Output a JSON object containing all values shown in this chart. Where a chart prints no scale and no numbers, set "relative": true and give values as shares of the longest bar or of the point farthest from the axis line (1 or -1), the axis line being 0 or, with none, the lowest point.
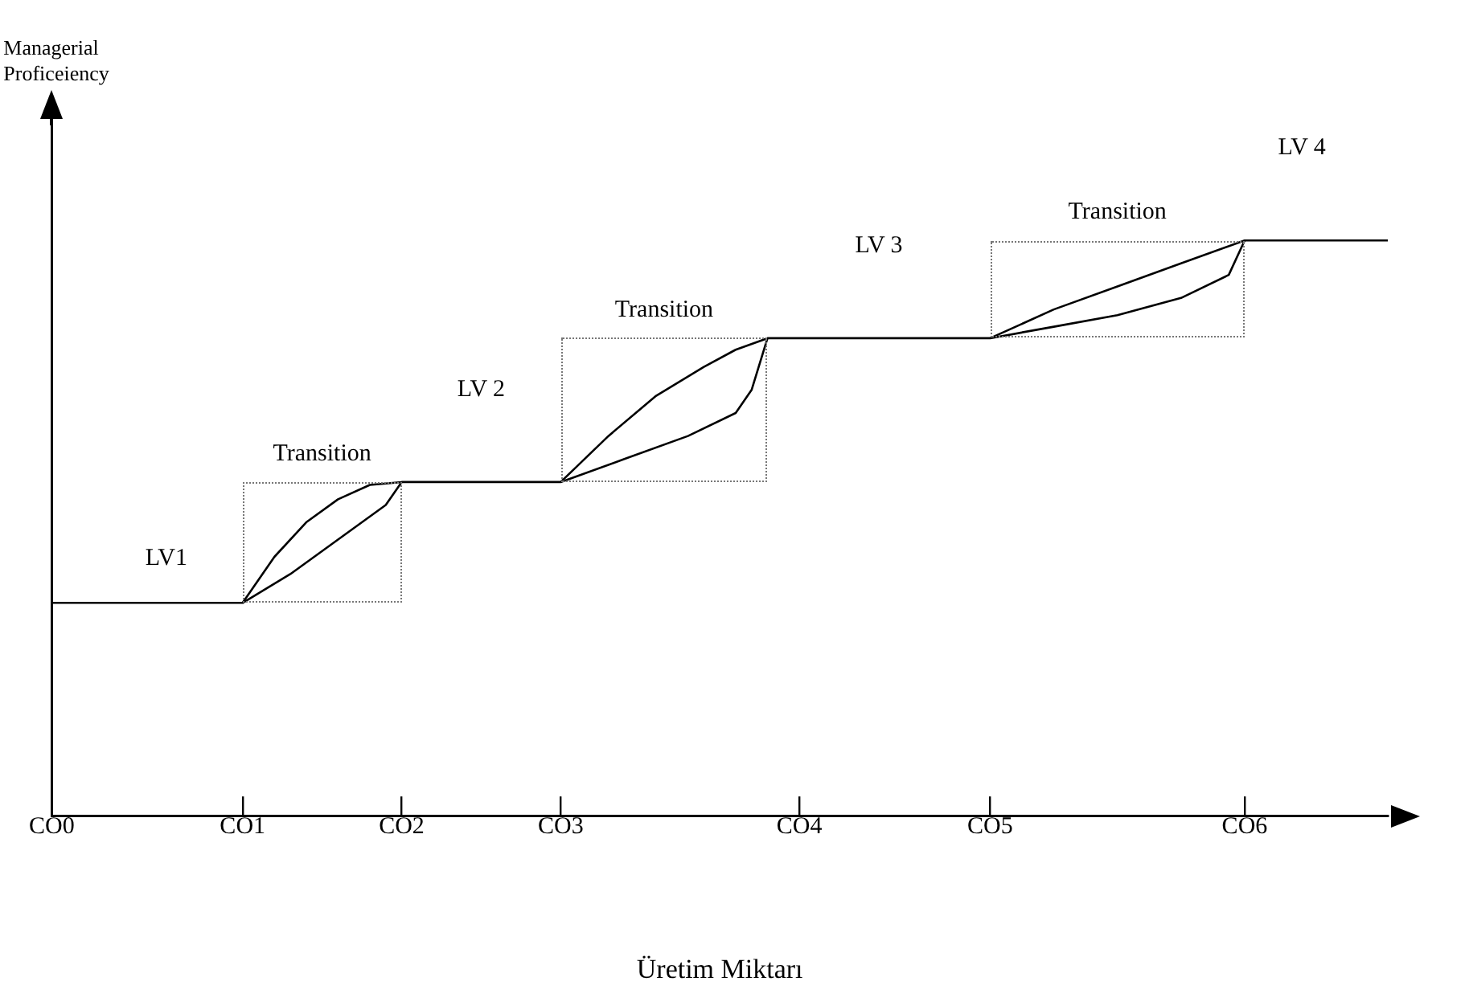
{
  "chart_data": {
    "type": "line",
    "relative": true,
    "xlabel": "Üretim Miktarı",
    "categories": [
      "CO0",
      null,
      null,
      null,
      null,
      null,
      null,
      null,
      null,
      null,
      null,
      null,
      "CO1",
      null,
      null,
      null,
      null,
      null,
      null,
      null,
      null,
      null,
      "CO2",
      null,
      null,
      null,
      null,
      null,
      null,
      null,
      null,
      null,
      "CO3",
      null,
      null,
      null,
      null,
      null,
      null,
      null,
      null,
      null,
      null,
      null,
      null,
      null,
      null,
      "CO4",
      null,
      null,
      null,
      null,
      null,
      null,
      null,
      null,
      null,
      null,
      null,
      "CO5",
      null,
      null,
      null,
      null,
      null,
      null,
      null,
      null,
      null,
      null,
      null,
      null,
      null,
      null,
      null,
      "CO6",
      null,
      null,
      null,
      null,
      null,
      null,
      null,
      null,
      null
    ],
    "series": [
      {
        "color": "#000000",
        "values": [
          0.37,
          null,
          null,
          null,
          null,
          null,
          null,
          null,
          null,
          null,
          null,
          null,
          0.37,
          null,
          0.45,
          null,
          0.51,
          null,
          0.55,
          null,
          0.575,
          null,
          0.58,
          null,
          null,
          null,
          null,
          null,
          null,
          null,
          null,
          null,
          0.58,
          null,
          null,
          0.66,
          null,
          null,
          0.73,
          null,
          null,
          0.78,
          null,
          0.81,
          null,
          0.83,
          null,
          null,
          null,
          null,
          null,
          null,
          null,
          null,
          null,
          null,
          null,
          null,
          null,
          0.83,
          null,
          null,
          null,
          0.88,
          null,
          null,
          null,
          0.92,
          null,
          null,
          null,
          0.96,
          null,
          null,
          null,
          1.0,
          null,
          null,
          null,
          null,
          null,
          null,
          null,
          null,
          1.0
        ]
      },
      {
        "color": "#000000",
        "values": [
          null,
          null,
          null,
          null,
          null,
          null,
          null,
          null,
          null,
          null,
          null,
          null,
          0.37,
          null,
          null,
          0.42,
          null,
          null,
          0.48,
          null,
          null,
          0.54,
          0.58,
          null,
          null,
          null,
          null,
          null,
          null,
          null,
          null,
          null,
          null,
          null,
          null,
          null,
          null,
          null,
          null,
          null,
          null,
          null,
          null,
          null,
          null,
          null,
          null,
          null,
          null,
          null,
          null,
          null,
          null,
          null,
          null,
          null,
          null,
          null,
          null,
          null,
          null,
          null,
          null,
          null,
          null,
          null,
          null,
          null,
          null,
          null,
          null,
          null,
          null,
          null,
          null,
          null,
          null,
          null,
          null,
          null,
          null,
          null,
          null,
          null,
          null
        ]
      },
      {
        "color": "#000000",
        "values": [
          null,
          null,
          null,
          null,
          null,
          null,
          null,
          null,
          null,
          null,
          null,
          null,
          null,
          null,
          null,
          null,
          null,
          null,
          null,
          null,
          null,
          null,
          null,
          null,
          null,
          null,
          null,
          null,
          null,
          null,
          null,
          null,
          0.58,
          null,
          null,
          null,
          0.62,
          null,
          null,
          null,
          0.66,
          null,
          null,
          0.7,
          0.74,
          0.83,
          null,
          null,
          null,
          null,
          null,
          null,
          null,
          null,
          null,
          null,
          null,
          null,
          null,
          null,
          null,
          null,
          null,
          null,
          null,
          null,
          null,
          null,
          null,
          null,
          null,
          null,
          null,
          null,
          null,
          null,
          null,
          null,
          null,
          null,
          null,
          null,
          null,
          null,
          null
        ]
      },
      {
        "color": "#000000",
        "values": [
          null,
          null,
          null,
          null,
          null,
          null,
          null,
          null,
          null,
          null,
          null,
          null,
          null,
          null,
          null,
          null,
          null,
          null,
          null,
          null,
          null,
          null,
          null,
          null,
          null,
          null,
          null,
          null,
          null,
          null,
          null,
          null,
          null,
          null,
          null,
          null,
          null,
          null,
          null,
          null,
          null,
          null,
          null,
          null,
          null,
          null,
          null,
          null,
          null,
          null,
          null,
          null,
          null,
          null,
          null,
          null,
          null,
          null,
          null,
          0.83,
          null,
          null,
          null,
          0.85,
          null,
          null,
          null,
          0.87,
          null,
          null,
          null,
          0.9,
          null,
          null,
          0.94,
          1.0,
          null,
          null,
          null,
          null,
          null,
          null,
          null,
          null,
          null
        ]
      }
    ],
    "annotations": [
      "Managerial Proficeiency",
      "LV1",
      "Transition",
      "LV 2",
      "Transition",
      "LV 3",
      "Transition",
      "LV 4"
    ],
    "grid": false,
    "legend": false,
    "marker": "none",
    "line_style": "solid"
  }
}
